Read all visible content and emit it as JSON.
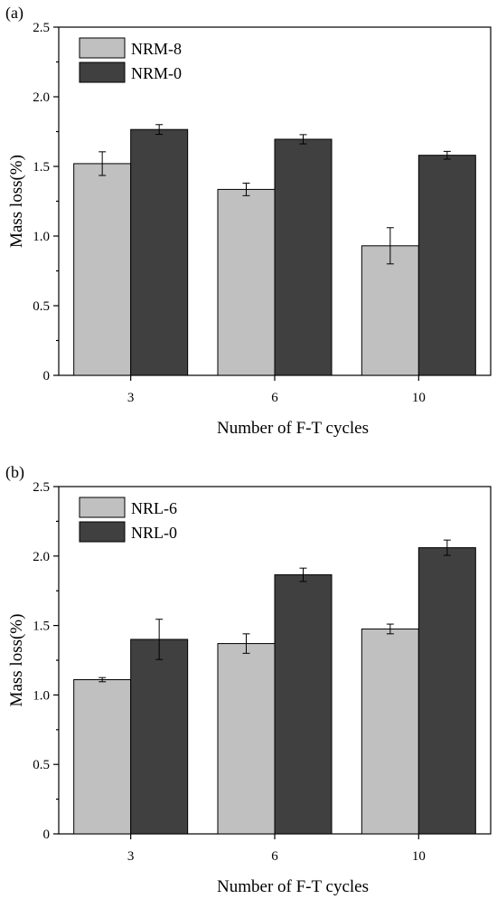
{
  "chart_data": [
    {
      "type": "bar",
      "panel_label": "(a)",
      "categories": [
        "3",
        "6",
        "10"
      ],
      "xlabel": "Number of F-T cycles",
      "ylabel": "Mass loss(%)",
      "ylim": [
        0,
        2.5
      ],
      "yticks": [
        "0",
        "0.5",
        "1.0",
        "1.5",
        "2.0",
        "2.5"
      ],
      "legend_position": "top-left",
      "series": [
        {
          "name": "NRM-8",
          "color": "#c0c0c0",
          "values": [
            1.52,
            1.335,
            0.93
          ],
          "errors": [
            0.085,
            0.045,
            0.13
          ]
        },
        {
          "name": "NRM-0",
          "color": "#404040",
          "values": [
            1.765,
            1.695,
            1.58
          ],
          "errors": [
            0.035,
            0.033,
            0.028
          ]
        }
      ]
    },
    {
      "type": "bar",
      "panel_label": "(b)",
      "categories": [
        "3",
        "6",
        "10"
      ],
      "xlabel": "Number of F-T cycles",
      "ylabel": "Mass loss(%)",
      "ylim": [
        0,
        2.5
      ],
      "yticks": [
        "0",
        "0.5",
        "1.0",
        "1.5",
        "2.0",
        "2.5"
      ],
      "legend_position": "top-left",
      "series": [
        {
          "name": "NRL-6",
          "color": "#c0c0c0",
          "values": [
            1.11,
            1.37,
            1.475
          ],
          "errors": [
            0.015,
            0.07,
            0.035
          ]
        },
        {
          "name": "NRL-0",
          "color": "#404040",
          "values": [
            1.4,
            1.865,
            2.06
          ],
          "errors": [
            0.145,
            0.048,
            0.055
          ]
        }
      ]
    }
  ]
}
